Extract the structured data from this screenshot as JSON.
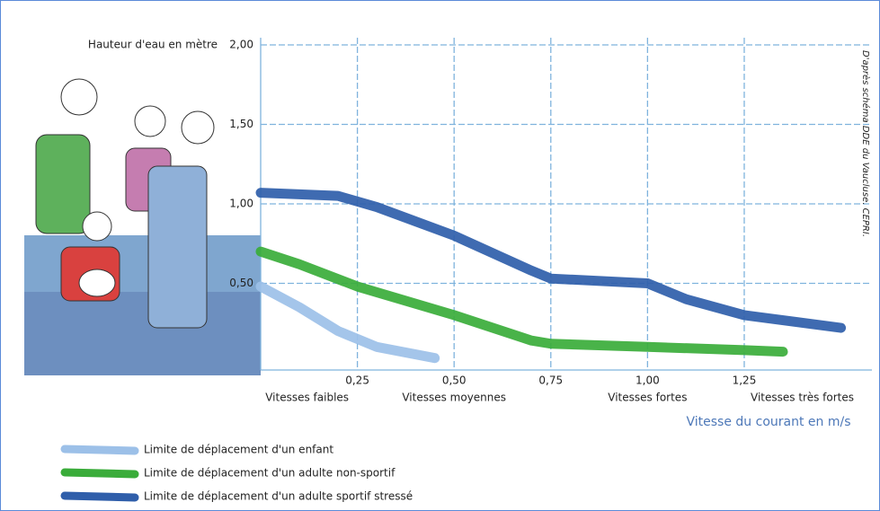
{
  "chart_data": {
    "type": "line",
    "y_label": "Hauteur d'eau en mètre",
    "x_label": "Vitesse du courant en m/s",
    "source": "D'après schéma DDE du Vaucluse. CEPRI.",
    "zones": [
      {
        "label": "Vitesses faibles",
        "x": 0.12
      },
      {
        "label": "Vitesses moyennes",
        "x": 0.5
      },
      {
        "label": "Vitesses fortes",
        "x": 1.0
      },
      {
        "label": "Vitesses très fortes",
        "x": 1.4
      }
    ],
    "xlim": [
      0,
      1.58
    ],
    "ylim": [
      0,
      2.0
    ],
    "xticks": [
      {
        "value": 0.25,
        "label": "0,25"
      },
      {
        "value": 0.5,
        "label": "0,50"
      },
      {
        "value": 0.75,
        "label": "0,75"
      },
      {
        "value": 1.0,
        "label": "1,00"
      },
      {
        "value": 1.25,
        "label": "1,25"
      }
    ],
    "yticks": [
      {
        "value": 0.5,
        "label": "0,50"
      },
      {
        "value": 1.0,
        "label": "1,00"
      },
      {
        "value": 1.5,
        "label": "1,50"
      },
      {
        "value": 2.0,
        "label": "2,00"
      }
    ],
    "grid": true,
    "series": [
      {
        "name": "Limite de déplacement d'un enfant",
        "color": "#9cc0e8",
        "x": [
          0,
          0.1,
          0.2,
          0.3,
          0.45
        ],
        "values": [
          0.48,
          0.35,
          0.2,
          0.1,
          0.03
        ]
      },
      {
        "name": "Limite de déplacement d'un adulte non-sportif",
        "color": "#3aac3a",
        "x": [
          0,
          0.1,
          0.25,
          0.5,
          0.7,
          0.75,
          1.0,
          1.25,
          1.35
        ],
        "values": [
          0.7,
          0.62,
          0.48,
          0.3,
          0.14,
          0.12,
          0.1,
          0.08,
          0.07
        ]
      },
      {
        "name": "Limite de déplacement d'un adulte sportif stressé",
        "color": "#2f5eaa",
        "x": [
          0,
          0.2,
          0.3,
          0.5,
          0.7,
          0.75,
          1.0,
          1.1,
          1.25,
          1.5
        ],
        "values": [
          1.07,
          1.05,
          0.98,
          0.8,
          0.58,
          0.53,
          0.5,
          0.4,
          0.3,
          0.22
        ]
      }
    ]
  }
}
